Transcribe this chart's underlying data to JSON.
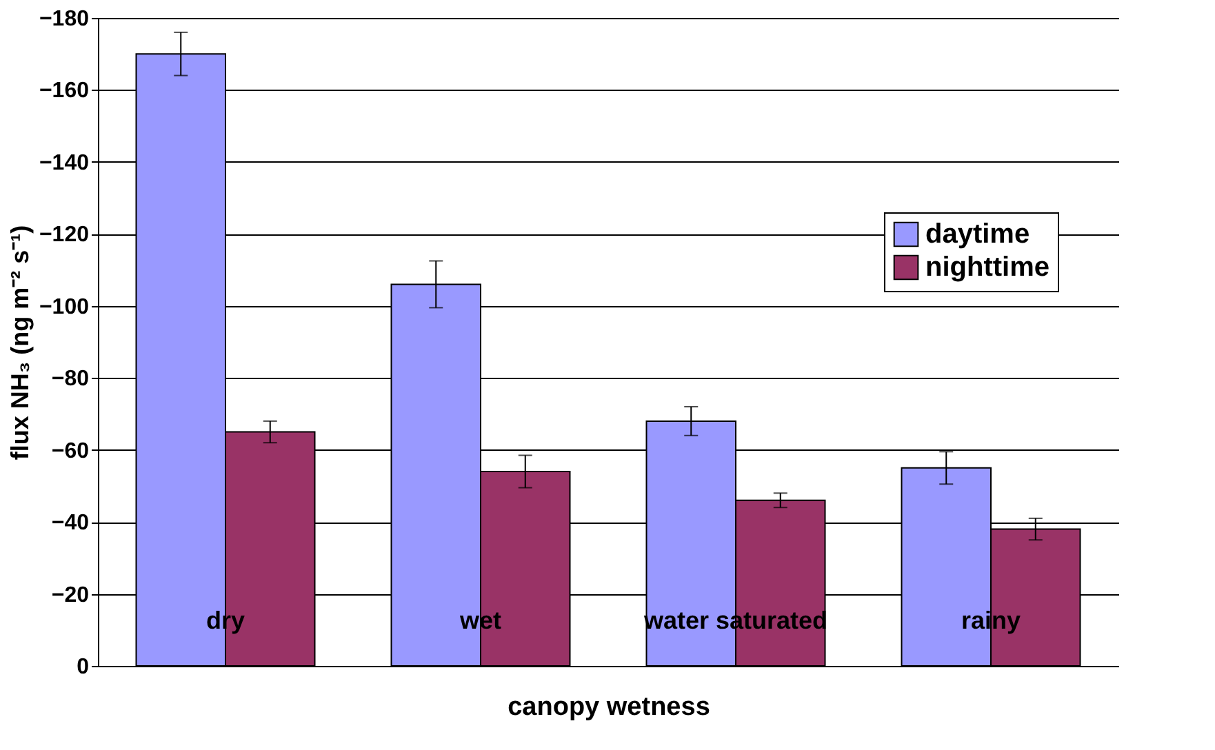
{
  "chart_data": {
    "type": "bar",
    "xlabel": "canopy wetness",
    "ylabel": "flux NH₃ (ng m⁻² s⁻¹)",
    "categories": [
      "dry",
      "wet",
      "water saturated",
      "rainy"
    ],
    "series": [
      {
        "name": "daytime",
        "color": "#9999ff",
        "values": [
          -170,
          -106,
          -68,
          -55
        ],
        "errors": [
          6,
          6.5,
          4,
          4.5
        ]
      },
      {
        "name": "nighttime",
        "color": "#993366",
        "values": [
          -65,
          -54,
          -46,
          -38
        ],
        "errors": [
          3,
          4.5,
          2,
          3
        ]
      }
    ],
    "ylim": [
      0,
      -180
    ],
    "yticks": [
      0,
      -20,
      -40,
      -60,
      -80,
      -100,
      -120,
      -140,
      -160,
      -180
    ],
    "grid": "y",
    "legend": "right"
  }
}
